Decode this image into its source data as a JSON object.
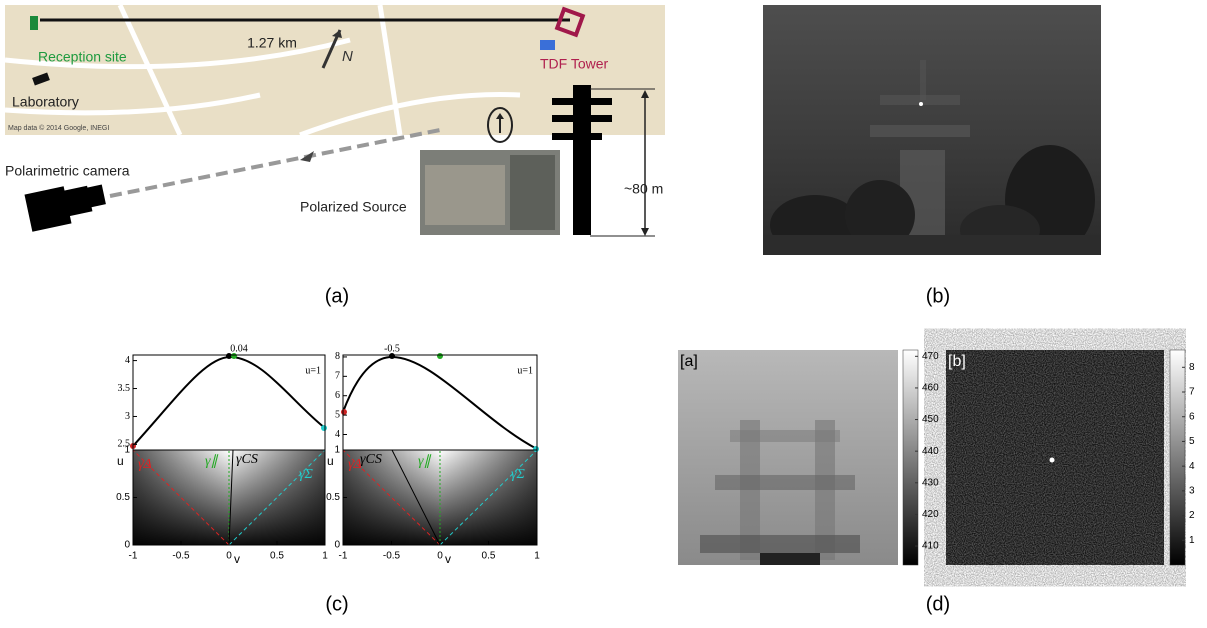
{
  "figure": {
    "map": {
      "distance": "1.27 km",
      "reception_site": "Reception site",
      "tower": "TDF Tower",
      "laboratory": "Laboratory",
      "north": "N",
      "credit": "Map data © 2014 Google, INEGI",
      "camera": "Polarimetric camera",
      "source": "Polarized Source",
      "height": "~80 m"
    },
    "captions": [
      "(a)",
      "(b)",
      "(c)",
      "(d)"
    ],
    "plots_c": [
      {
        "annotation": "0.04",
        "u_label": "u=1",
        "ylim": [
          2.4,
          4.1
        ],
        "yticks": [
          2.5,
          3,
          3.5,
          4
        ],
        "xlim": [
          -1,
          1
        ],
        "xticks": [
          -1,
          -0.5,
          0,
          0.5,
          1
        ],
        "lower_ylim": [
          0,
          1
        ],
        "lower_yticks": [
          0,
          0.5,
          1
        ],
        "y_label": "u",
        "x_label": "v",
        "gammas": [
          "γΔ",
          "γ∥",
          "γCS",
          "γΣ"
        ]
      },
      {
        "annotation": "-0.5",
        "u_label": "u=1",
        "ylim": [
          3.2,
          8.1
        ],
        "yticks": [
          4,
          5,
          6,
          7,
          8
        ],
        "xlim": [
          -1,
          1
        ],
        "xticks": [
          -1,
          -0.5,
          0,
          0.5,
          1
        ],
        "lower_ylim": [
          0,
          1
        ],
        "lower_yticks": [
          0,
          0.5,
          1
        ],
        "y_label": "u",
        "x_label": "v",
        "gammas": [
          "γΔ",
          "γ∥",
          "γCS",
          "γΣ"
        ]
      }
    ],
    "plots_d": [
      {
        "tag": "[a]",
        "cbar_lim": [
          404,
          472
        ],
        "cbar_ticks": [
          410,
          420,
          430,
          440,
          450,
          460,
          470
        ]
      },
      {
        "tag": "[b]",
        "cbar_lim": [
          0,
          8.7
        ],
        "cbar_ticks": [
          1,
          2,
          3,
          4,
          5,
          6,
          7,
          8
        ]
      }
    ]
  }
}
